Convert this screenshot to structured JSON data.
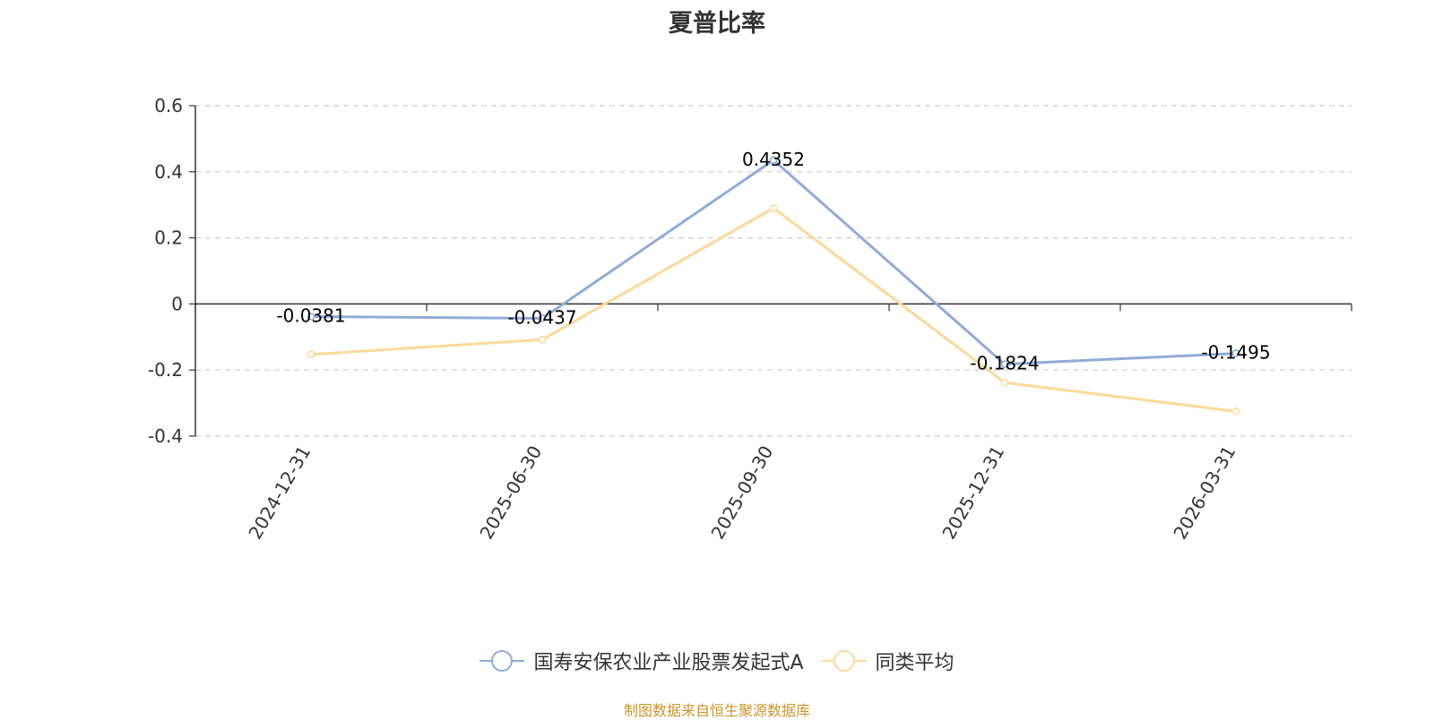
{
  "chart_data": {
    "type": "line",
    "title": "夏普比率",
    "categories": [
      "2024-12-31",
      "2025-06-30",
      "2025-09-30",
      "2025-12-31",
      "2026-03-31"
    ],
    "series": [
      {
        "name": "国寿安保农业产业股票发起式A",
        "values": [
          -0.0381,
          -0.0437,
          0.4352,
          -0.1824,
          -0.1495
        ],
        "color": "#8fabd8",
        "labels": [
          "-0.0381",
          "-0.0437",
          "0.4352",
          "-0.1824",
          "-0.1495"
        ]
      },
      {
        "name": "同类平均",
        "values": [
          -0.153,
          -0.108,
          0.29,
          -0.238,
          -0.325
        ],
        "color": "#fcd998"
      }
    ],
    "ylim": [
      -0.4,
      0.6
    ],
    "yticks": [
      "0.6",
      "0.4",
      "0.2",
      "0",
      "-0.2",
      "-0.4"
    ],
    "ytick_values": [
      0.6,
      0.4,
      0.2,
      0,
      -0.2,
      -0.4
    ],
    "grid": true,
    "legend_position": "bottom-center"
  },
  "source_note": "制图数据来自恒生聚源数据库"
}
